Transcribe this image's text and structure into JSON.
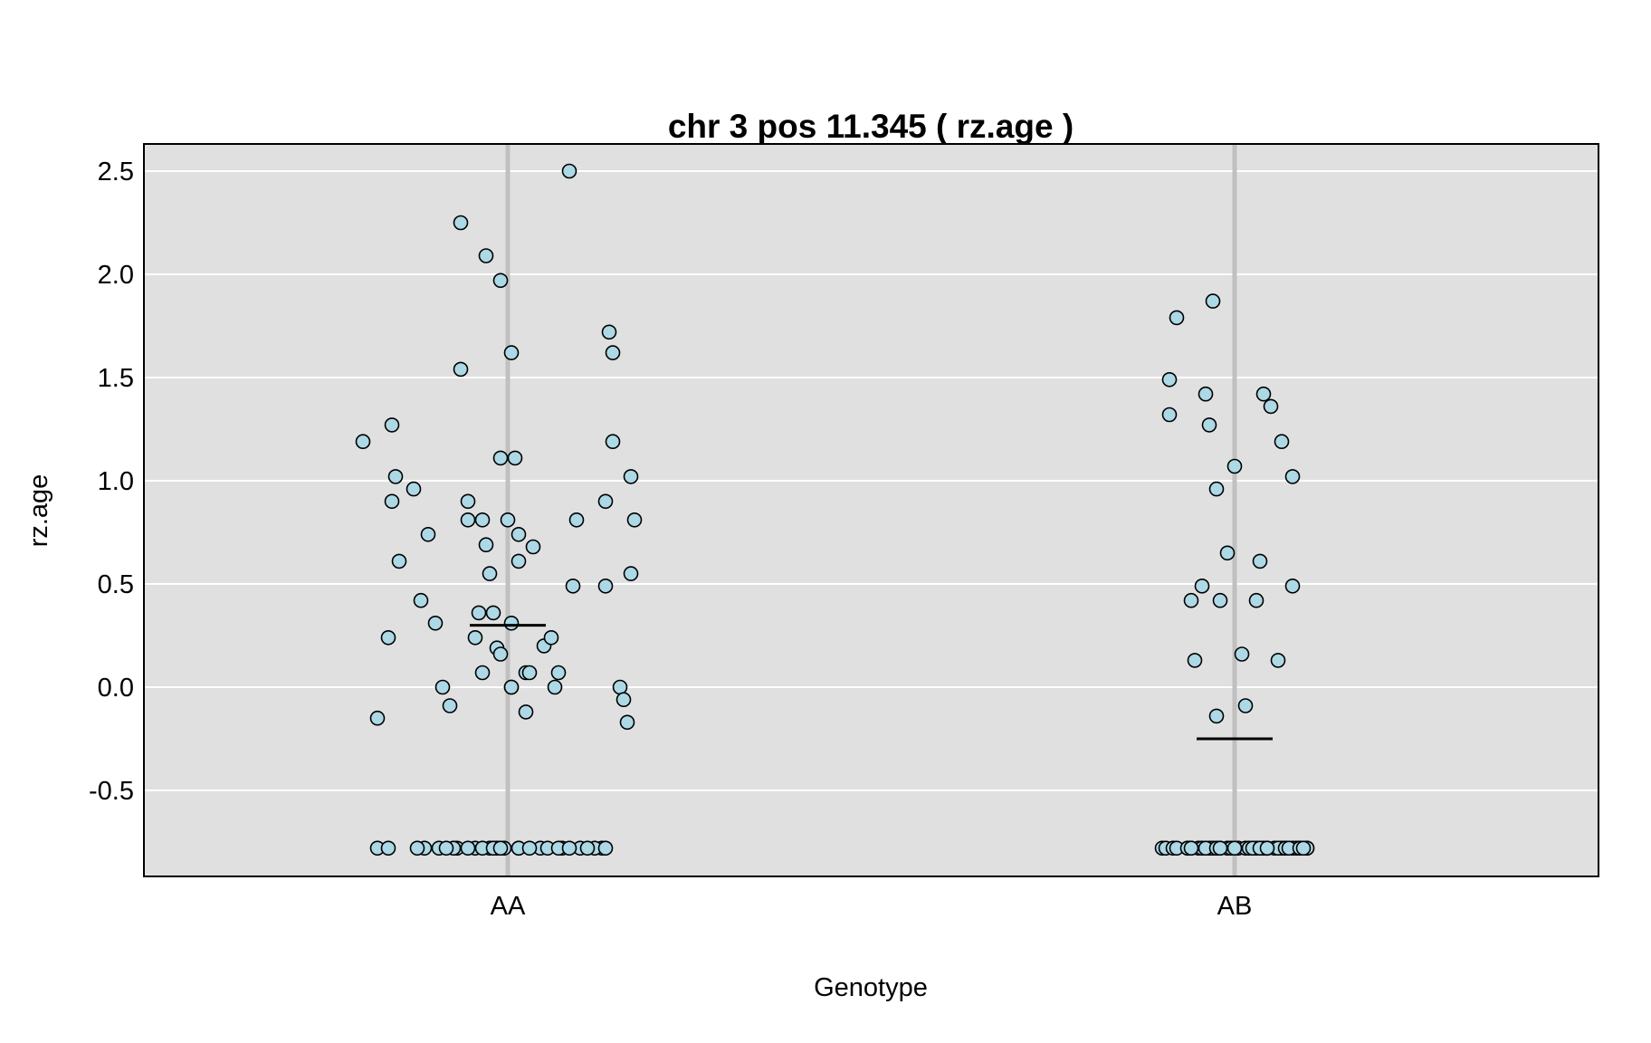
{
  "chart_data": {
    "type": "scatter",
    "title": "chr 3 pos 11.345 ( rz.age )",
    "xlabel": "Genotype",
    "ylabel": "rz.age",
    "categories": [
      "AA",
      "AB"
    ],
    "ylim": [
      -0.9,
      2.6
    ],
    "yticks": [
      -0.5,
      0.0,
      0.5,
      1.0,
      1.5,
      2.0,
      2.5
    ],
    "ytick_labels": [
      "-0.5",
      "0.0",
      "0.5",
      "1.0",
      "1.5",
      "2.0",
      "2.5"
    ],
    "grid": true,
    "background": "#e0e0e0",
    "point_fill": "#add8e6",
    "point_stroke": "#000000",
    "group_line_color": "#c0c0c0",
    "means": [
      {
        "category": "AA",
        "value": 0.3
      },
      {
        "category": "AB",
        "value": -0.25
      }
    ],
    "series": [
      {
        "category": "AA",
        "jitter": [
          -0.4,
          -0.36,
          -0.33,
          -0.32,
          -0.32,
          -0.31,
          -0.3,
          -0.26,
          -0.24,
          -0.22,
          -0.2,
          -0.16,
          -0.13,
          -0.13,
          -0.11,
          -0.11,
          -0.09,
          -0.08,
          -0.07,
          -0.07,
          -0.06,
          -0.06,
          -0.05,
          -0.04,
          -0.03,
          -0.02,
          -0.02,
          -0.02,
          0.0,
          0.01,
          0.01,
          0.01,
          0.01,
          0.02,
          0.03,
          0.03,
          0.05,
          0.05,
          0.06,
          0.07,
          0.1,
          0.12,
          0.13,
          0.14,
          0.17,
          0.18,
          0.19,
          0.27,
          0.27,
          0.28,
          0.29,
          0.29,
          0.31,
          0.32,
          0.33,
          0.34,
          0.34,
          0.35,
          -0.18,
          -0.36,
          -0.33,
          -0.23,
          -0.19,
          -0.05,
          -0.09,
          0.09,
          -0.03,
          0.11,
          0.15,
          0.03,
          -0.14,
          -0.01,
          0.2,
          0.26,
          0.03,
          0.24,
          -0.07,
          -0.04,
          -0.15,
          0.22,
          -0.11,
          0.27,
          0.14,
          0.06,
          -0.25,
          0.17,
          -0.17,
          -0.02,
          0.08
        ],
        "values": [
          1.19,
          -0.15,
          0.24,
          1.27,
          0.9,
          1.02,
          0.61,
          0.96,
          0.42,
          0.74,
          0.31,
          -0.09,
          1.54,
          2.25,
          0.9,
          0.81,
          0.24,
          0.36,
          0.81,
          0.07,
          0.69,
          2.09,
          0.55,
          0.36,
          0.19,
          0.16,
          1.97,
          1.11,
          0.81,
          0.0,
          0.0,
          1.62,
          0.31,
          1.11,
          0.61,
          0.74,
          0.07,
          -0.12,
          0.07,
          0.68,
          0.2,
          0.24,
          0.0,
          0.07,
          2.5,
          0.49,
          0.81,
          0.9,
          0.49,
          1.72,
          1.62,
          1.19,
          0.0,
          -0.06,
          -0.17,
          1.02,
          0.55,
          0.81,
          0.0,
          -0.78,
          -0.78,
          -0.78,
          -0.78,
          -0.78,
          -0.78,
          -0.78,
          -0.78,
          -0.78,
          -0.78,
          -0.78,
          -0.78,
          -0.78,
          -0.78,
          -0.78,
          -0.78,
          -0.78,
          -0.78,
          -0.78,
          -0.78,
          -0.78,
          -0.78,
          -0.78,
          -0.78,
          -0.78,
          -0.78,
          -0.78,
          -0.78,
          -0.78
        ]
      },
      {
        "category": "AB",
        "jitter": [
          -0.18,
          -0.18,
          -0.16,
          -0.12,
          -0.11,
          -0.09,
          -0.07,
          -0.06,
          -0.08,
          -0.05,
          -0.05,
          -0.04,
          -0.02,
          0.0,
          0.02,
          0.03,
          0.06,
          0.07,
          0.08,
          0.1,
          0.12,
          0.13,
          0.16,
          0.16,
          0.2,
          0.2,
          -0.2,
          -0.19,
          -0.17,
          -0.13,
          -0.12,
          -0.1,
          -0.09,
          -0.07,
          -0.06,
          -0.04,
          -0.02,
          -0.01,
          0.01,
          0.03,
          0.04,
          0.06,
          0.08,
          0.09,
          0.11,
          0.13,
          0.14,
          0.16,
          0.17,
          0.18,
          -0.16,
          -0.13,
          -0.08,
          -0.05,
          0.0,
          0.05,
          0.09,
          0.12,
          0.14,
          0.15,
          0.18,
          -0.12,
          -0.04,
          0.07,
          0.09,
          0.19
        ],
        "values": [
          1.32,
          1.49,
          1.79,
          0.42,
          0.13,
          0.49,
          1.27,
          1.87,
          1.42,
          0.96,
          -0.14,
          0.42,
          0.65,
          1.07,
          0.16,
          -0.09,
          0.42,
          0.61,
          1.42,
          1.36,
          0.13,
          1.19,
          1.02,
          0.49,
          -0.78,
          -0.78,
          -0.78,
          -0.78,
          -0.78,
          -0.78,
          -0.78,
          -0.78,
          -0.78,
          -0.78,
          -0.78,
          -0.78,
          -0.78,
          -0.78,
          -0.78,
          -0.78,
          -0.78,
          -0.78,
          -0.78,
          -0.78,
          -0.78,
          -0.78,
          -0.78,
          -0.78,
          -0.78,
          -0.78,
          -0.78,
          -0.78,
          -0.78,
          -0.78,
          -0.78,
          -0.78,
          -0.78,
          -0.78,
          -0.78,
          -0.78,
          -0.78,
          -0.78,
          -0.78,
          -0.78,
          -0.78,
          -0.78
        ]
      }
    ]
  }
}
